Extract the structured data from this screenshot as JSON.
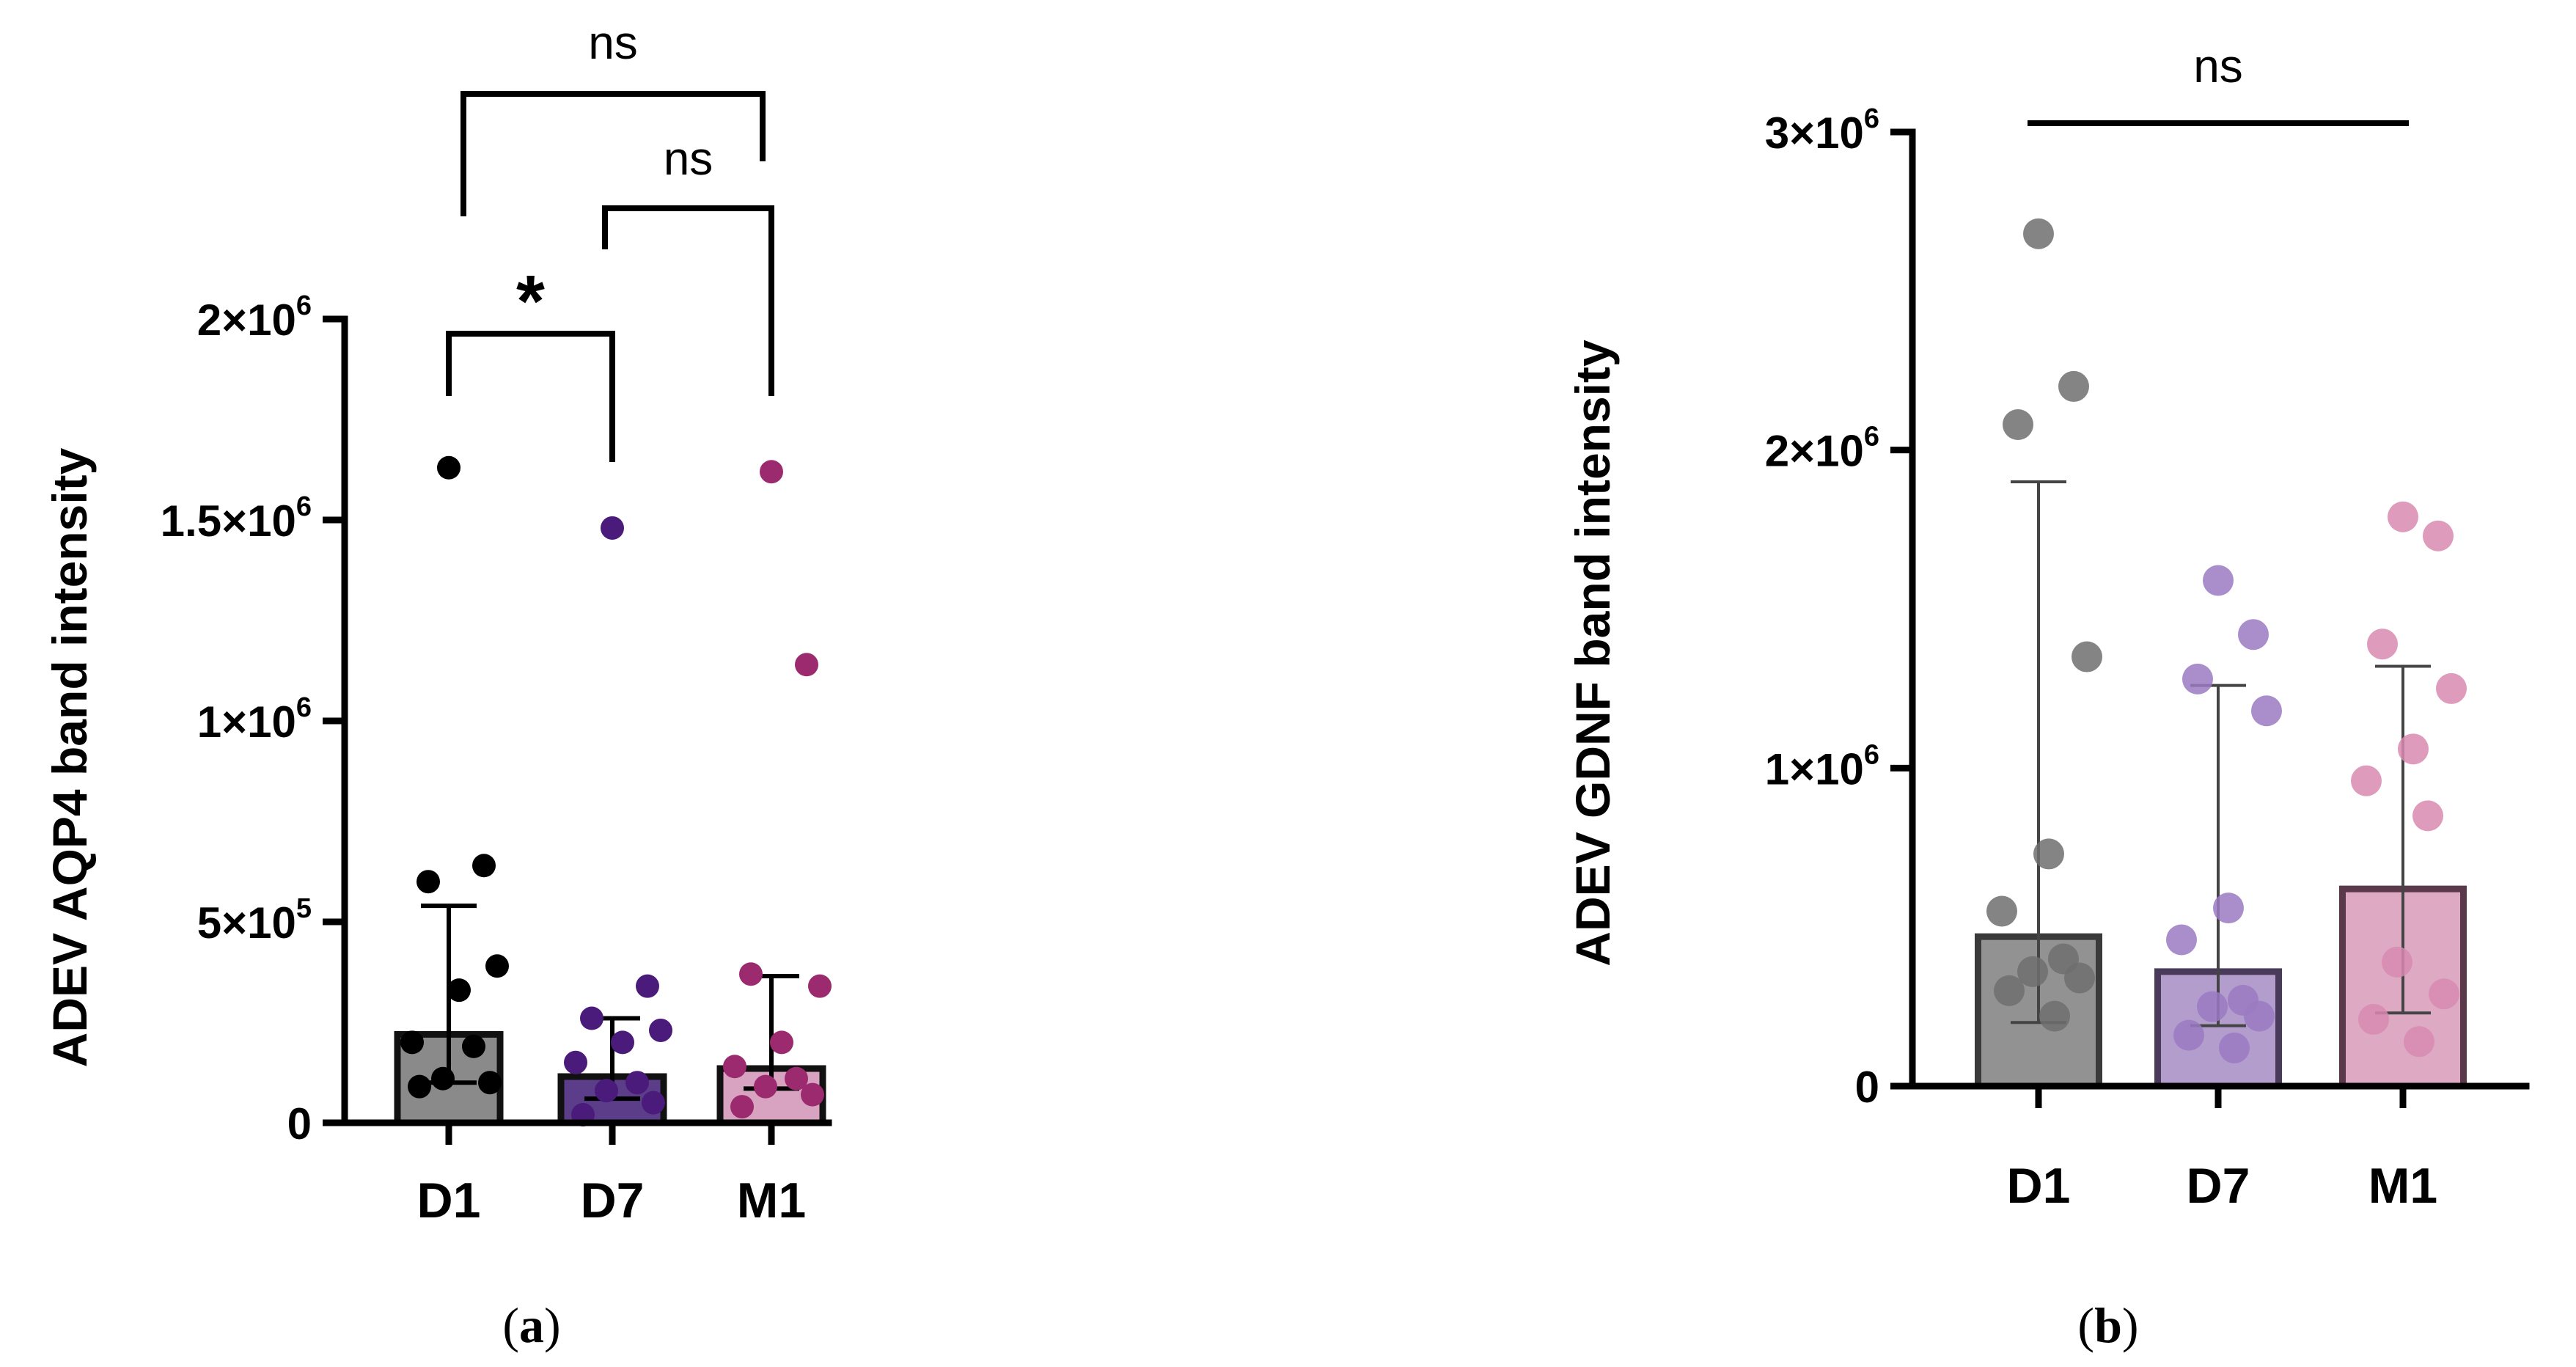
{
  "chart_data": [
    {
      "type": "bar",
      "panel_label": "a",
      "ylabel": "ADEV AQP4 band intensity",
      "xlabel": "",
      "ylim": [
        0,
        2000000
      ],
      "yticks": [
        0,
        500000,
        1000000,
        1500000,
        2000000
      ],
      "ytick_labels": [
        {
          "base": "0",
          "exp": ""
        },
        {
          "base": "5×10",
          "exp": "5"
        },
        {
          "base": "1×10",
          "exp": "6"
        },
        {
          "base": "1.5×10",
          "exp": "6"
        },
        {
          "base": "2×10",
          "exp": "6"
        }
      ],
      "categories": [
        "D1",
        "D7",
        "M1"
      ],
      "bar_fill_colors": [
        "#8a8a8a",
        "#5c3d8a",
        "#d7a3c1"
      ],
      "point_colors": [
        "#000000",
        "#4a1b7a",
        "#9c2a6e"
      ],
      "values": [
        220000,
        115000,
        135000
      ],
      "error_upper": [
        540000,
        260000,
        365000
      ],
      "error_lower": [
        100000,
        60000,
        85000
      ],
      "points": [
        [
          1630000,
          640000,
          600000,
          390000,
          330000,
          200000,
          190000,
          110000,
          100000,
          90000
        ],
        [
          1480000,
          340000,
          260000,
          230000,
          200000,
          150000,
          100000,
          80000,
          50000,
          20000
        ],
        [
          1620000,
          1140000,
          370000,
          340000,
          200000,
          140000,
          110000,
          90000,
          70000,
          40000
        ]
      ],
      "significance": [
        {
          "from": "D1",
          "to": "D7",
          "label": "*"
        },
        {
          "from": "D7",
          "to": "M1",
          "label": "ns"
        },
        {
          "from": "D1",
          "to": "M1",
          "label": "ns"
        }
      ]
    },
    {
      "type": "bar",
      "panel_label": "b",
      "ylabel": "ADEV GDNF band intensity",
      "xlabel": "",
      "ylim": [
        0,
        3000000
      ],
      "yticks": [
        0,
        1000000,
        2000000,
        3000000
      ],
      "ytick_labels": [
        {
          "base": "0",
          "exp": ""
        },
        {
          "base": "1×10",
          "exp": "6"
        },
        {
          "base": "2×10",
          "exp": "6"
        },
        {
          "base": "3×10",
          "exp": "6"
        }
      ],
      "categories": [
        "D1",
        "D7",
        "M1"
      ],
      "bar_fill_colors": [
        "#7f7f7f",
        "#a48cc4",
        "#d89bb8"
      ],
      "point_colors": [
        "#6f6f6f",
        "#9a7ac2",
        "#d889b0"
      ],
      "values": [
        470000,
        360000,
        620000
      ],
      "error_upper": [
        1900000,
        1260000,
        1320000
      ],
      "error_lower": [
        200000,
        190000,
        230000
      ],
      "points": [
        [
          2680000,
          2200000,
          2080000,
          1350000,
          730000,
          550000,
          400000,
          360000,
          340000,
          300000,
          220000
        ],
        [
          1590000,
          1420000,
          1280000,
          1180000,
          560000,
          460000,
          270000,
          250000,
          220000,
          160000,
          120000
        ],
        [
          1790000,
          1730000,
          1390000,
          1250000,
          1060000,
          960000,
          850000,
          390000,
          290000,
          210000,
          140000
        ]
      ],
      "significance": [
        {
          "from": "D1",
          "to": "M1",
          "label": "ns"
        }
      ]
    }
  ]
}
